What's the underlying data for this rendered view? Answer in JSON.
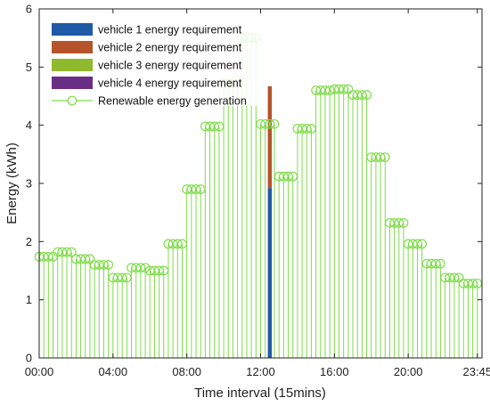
{
  "chart_data": {
    "type": "bar",
    "title": "",
    "xlabel": "Time interval (15mins)",
    "ylabel": "Energy (kWh)",
    "ylim": [
      0,
      6
    ],
    "yticks": [
      "0",
      "1",
      "2",
      "3",
      "4",
      "5",
      "6"
    ],
    "xlim": [
      0,
      96
    ],
    "xticks": [
      {
        "pos": 0,
        "label": "00:00"
      },
      {
        "pos": 16,
        "label": "04:00"
      },
      {
        "pos": 32,
        "label": "08:00"
      },
      {
        "pos": 48,
        "label": "12:00"
      },
      {
        "pos": 64,
        "label": "16:00"
      },
      {
        "pos": 80,
        "label": "20:00"
      },
      {
        "pos": 95,
        "label": "23:45"
      }
    ],
    "grid": false,
    "legend_position": "top-left",
    "colors": {
      "generation": "#7fdc4a",
      "vehicle1": "#1f5aa6",
      "vehicle2": "#b5542a",
      "vehicle3": "#8fba2e",
      "vehicle4": "#6a2d86"
    },
    "series": [
      {
        "name": "vehicle 1 energy requirement",
        "color": "#1f5aa6",
        "x": [
          50
        ],
        "values": [
          2.92
        ]
      },
      {
        "name": "vehicle 2 energy requirement",
        "color": "#b5542a",
        "x": [
          50
        ],
        "values": [
          1.75
        ]
      },
      {
        "name": "vehicle 3 energy requirement",
        "color": "#8fba2e",
        "x": [
          50
        ],
        "values": [
          0
        ]
      },
      {
        "name": "vehicle 4 energy requirement",
        "color": "#6a2d86",
        "x": [
          50
        ],
        "values": [
          0
        ]
      },
      {
        "name": "Renewable energy generation",
        "color": "#7fdc4a",
        "type": "stem",
        "x_start": 0,
        "values": [
          1.74,
          1.74,
          1.74,
          1.74,
          1.82,
          1.82,
          1.82,
          1.82,
          1.7,
          1.7,
          1.7,
          1.7,
          1.6,
          1.6,
          1.6,
          1.6,
          1.38,
          1.38,
          1.38,
          1.38,
          1.55,
          1.55,
          1.55,
          1.55,
          1.5,
          1.5,
          1.5,
          1.5,
          1.96,
          1.96,
          1.96,
          1.96,
          2.9,
          2.9,
          2.9,
          2.9,
          3.98,
          3.98,
          3.98,
          3.98,
          4.72,
          4.72,
          4.72,
          4.72,
          5.5,
          5.5,
          5.5,
          5.5,
          4.02,
          4.02,
          4.02,
          4.02,
          3.12,
          3.12,
          3.12,
          3.12,
          3.94,
          3.94,
          3.94,
          3.94,
          4.6,
          4.6,
          4.6,
          4.6,
          4.62,
          4.62,
          4.62,
          4.62,
          4.52,
          4.52,
          4.52,
          4.52,
          3.45,
          3.45,
          3.45,
          3.45,
          2.32,
          2.32,
          2.32,
          2.32,
          1.96,
          1.96,
          1.96,
          1.96,
          1.62,
          1.62,
          1.62,
          1.62,
          1.38,
          1.38,
          1.38,
          1.38,
          1.28,
          1.28,
          1.28,
          1.28
        ]
      }
    ]
  }
}
